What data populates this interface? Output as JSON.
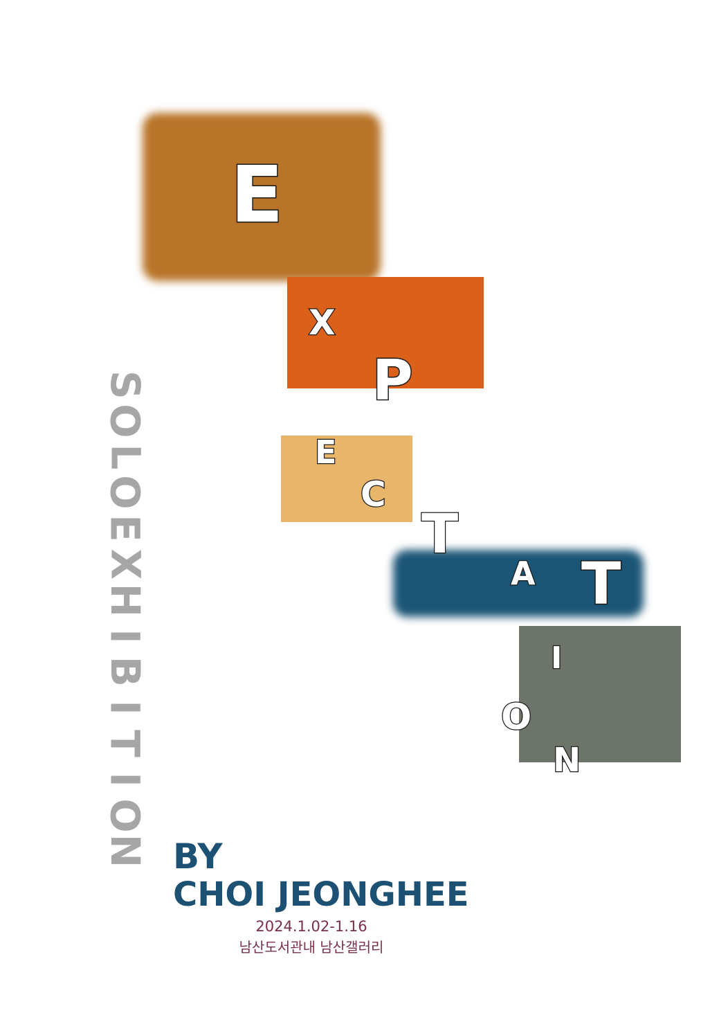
{
  "colors": {
    "block_e": "#b87428",
    "block_xp": "#db6019",
    "block_ec": "#e8b66b",
    "block_tat": "#1b5576",
    "block_ion": "#6d7469",
    "vertical_text": "#a6a6a6",
    "artist": "#1d5173",
    "info": "#7a2f48"
  },
  "title_letters": [
    "E",
    "X",
    "P",
    "E",
    "C",
    "T",
    "A",
    "T",
    "I",
    "O",
    "N"
  ],
  "vertical_letters": [
    "S",
    "O",
    "L",
    "O",
    "E",
    "X",
    "H",
    "I",
    "B",
    "I",
    "T",
    "I",
    "O",
    "N"
  ],
  "artist": {
    "by": "BY",
    "name": "CHOI JEONGHEE"
  },
  "info": {
    "dates": "2024.1.02-1.16",
    "venue": "남산도서관내 남산갤러리"
  }
}
